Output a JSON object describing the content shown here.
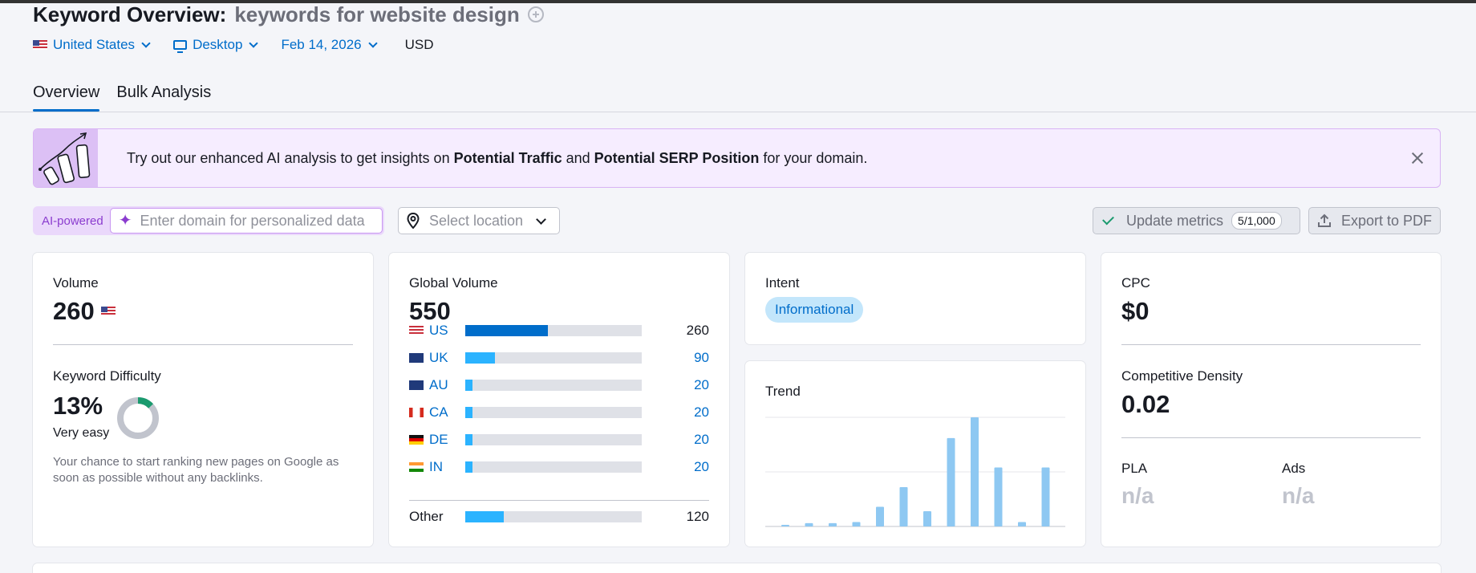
{
  "header": {
    "title": "Keyword Overview:",
    "keyword": "keywords for website design",
    "filters": {
      "country": "United States",
      "device": "Desktop",
      "date": "Feb 14, 2026",
      "currency": "USD"
    }
  },
  "tabs": [
    {
      "label": "Overview",
      "active": true
    },
    {
      "label": "Bulk Analysis",
      "active": false
    }
  ],
  "banner": {
    "text_1": "Try out our enhanced AI analysis to get insights on ",
    "bold_1": "Potential Traffic",
    "text_2": " and ",
    "bold_2": "Potential SERP Position",
    "text_3": " for your domain."
  },
  "controls": {
    "ai_label": "AI-powered",
    "domain_placeholder": "Enter domain for personalized data",
    "location_placeholder": "Select location",
    "update_label": "Update metrics",
    "update_count": "5/1,000",
    "export_label": "Export to PDF"
  },
  "volume_card": {
    "volume_label": "Volume",
    "volume_value": "260",
    "kd_label": "Keyword Difficulty",
    "kd_value": "13%",
    "kd_percent": 13,
    "kd_rating": "Very easy",
    "kd_description": "Your chance to start ranking new pages on Google as soon as possible without any backlinks."
  },
  "global_card": {
    "label": "Global Volume",
    "value": "550",
    "countries": [
      {
        "code": "US",
        "value": "260",
        "share": 0.47,
        "highlight": true
      },
      {
        "code": "UK",
        "value": "90",
        "share": 0.17,
        "highlight": false
      },
      {
        "code": "AU",
        "value": "20",
        "share": 0.04,
        "highlight": false
      },
      {
        "code": "CA",
        "value": "20",
        "share": 0.04,
        "highlight": false
      },
      {
        "code": "DE",
        "value": "20",
        "share": 0.04,
        "highlight": false
      },
      {
        "code": "IN",
        "value": "20",
        "share": 0.04,
        "highlight": false
      }
    ],
    "other": {
      "label": "Other",
      "value": "120",
      "share": 0.22
    }
  },
  "intent_card": {
    "label": "Intent",
    "value": "Informational"
  },
  "trend_card": {
    "label": "Trend",
    "chart_data": {
      "type": "bar",
      "values": [
        0.01,
        0.03,
        0.03,
        0.04,
        0.18,
        0.36,
        0.14,
        0.81,
        1.0,
        0.54,
        0.04,
        0.54
      ],
      "ylim": [
        0,
        1
      ]
    }
  },
  "cpc_card": {
    "cpc_label": "CPC",
    "cpc_value": "$0",
    "density_label": "Competitive Density",
    "density_value": "0.02",
    "pla_label": "PLA",
    "pla_value": "n/a",
    "ads_label": "Ads",
    "ads_value": "n/a"
  },
  "colors": {
    "accent": "#006dca",
    "bar_light": "#2bb3ff",
    "trend_bar": "#8ec8f2",
    "kd_green": "#1a9a6e",
    "banner_bg": "#f6edff"
  }
}
